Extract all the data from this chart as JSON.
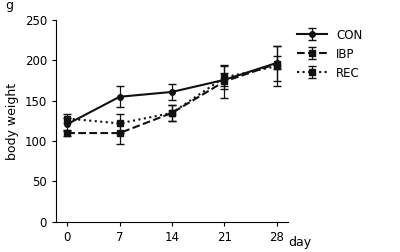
{
  "x": [
    0,
    7,
    14,
    21,
    28
  ],
  "CON_y": [
    121,
    155,
    161,
    176,
    197
  ],
  "CON_err": [
    8,
    13,
    10,
    8,
    8
  ],
  "IBP_y": [
    110,
    110,
    135,
    174,
    196
  ],
  "IBP_err": [
    4,
    13,
    10,
    20,
    22
  ],
  "REC_y": [
    128,
    122,
    135,
    179,
    193
  ],
  "REC_err": [
    6,
    12,
    10,
    14,
    25
  ],
  "xlabel": "day",
  "ylabel": "body weight",
  "unit_label": "g",
  "ylim": [
    0,
    250
  ],
  "yticks": [
    0,
    50,
    100,
    150,
    200,
    250
  ],
  "xticks": [
    0,
    7,
    14,
    21,
    28
  ],
  "legend_labels": [
    "CON",
    "IBP",
    "REC"
  ],
  "line_color": "#111111"
}
